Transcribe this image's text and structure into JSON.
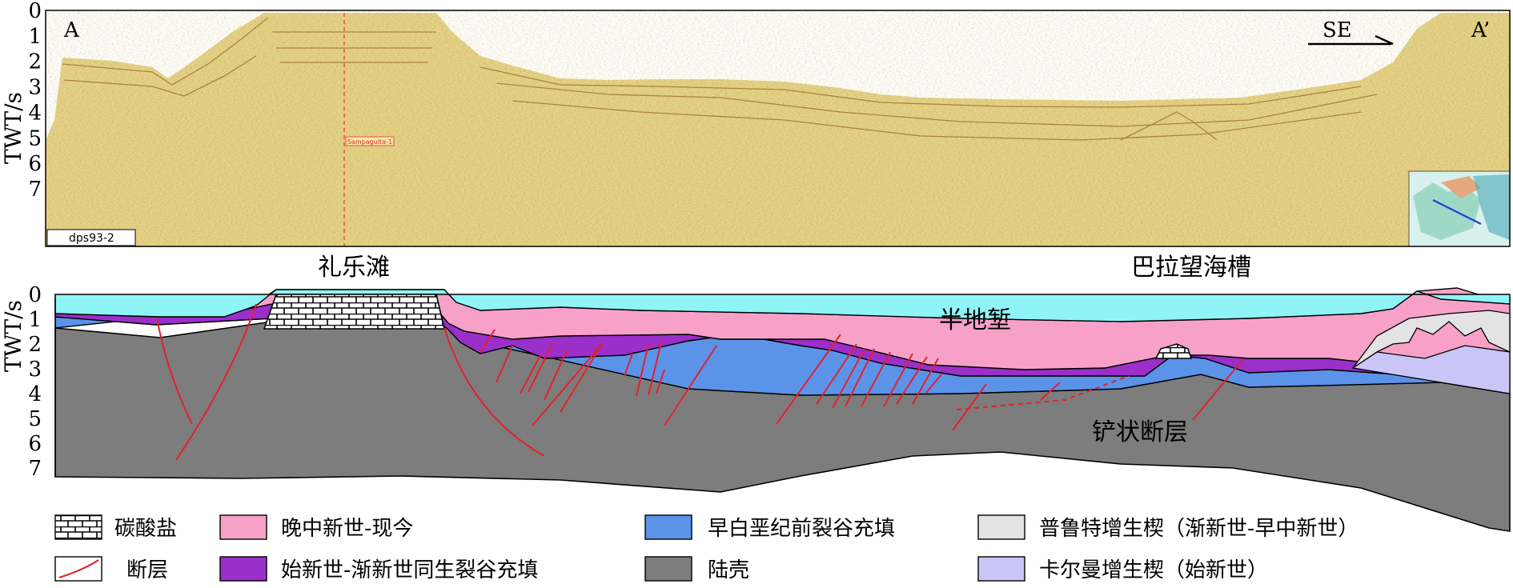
{
  "seismic": {
    "ylabel": "TWT/s",
    "ticks": [
      "0",
      "1",
      "2",
      "3",
      "4",
      "5",
      "6",
      "7"
    ],
    "corner_left": "A",
    "corner_right": "A’",
    "direction": "SE",
    "line_name": "dps93-2",
    "well_label": "Sampaguita-1"
  },
  "places": {
    "left": "礼乐滩",
    "right": "巴拉望海槽"
  },
  "interpretation": {
    "ylabel": "TWT/s",
    "ticks": [
      "0",
      "1",
      "2",
      "3",
      "4",
      "5",
      "6",
      "7"
    ],
    "label_halfgraben": "半地堑",
    "label_listric": "铲状断层"
  },
  "legend": [
    {
      "key": "carbonate",
      "label": "碳酸盐",
      "color": "#ffffff"
    },
    {
      "key": "fault",
      "label": "断层",
      "color": "#e3212b"
    },
    {
      "key": "late_miocene",
      "label": "晚中新世-现今",
      "color": "#f7a1c8"
    },
    {
      "key": "synrift",
      "label": "始新世-渐新世同生裂谷充填",
      "color": "#9b2fc9"
    },
    {
      "key": "prerift",
      "label": "早白垩纪前裂谷充填",
      "color": "#5b93e8"
    },
    {
      "key": "crust",
      "label": "陆壳",
      "color": "#7d7d7d"
    },
    {
      "key": "prut",
      "label": "普鲁特增生楔（渐新世-早中新世）",
      "color": "#e3e3e3"
    },
    {
      "key": "kalman",
      "label": "卡尔曼增生楔（始新世）",
      "color": "#c9c6f7"
    }
  ],
  "colors": {
    "water": "#8ef4f6",
    "late_miocene": "#f7a1c8",
    "synrift": "#9b2fc9",
    "prerift": "#5b93e8",
    "crust": "#7d7d7d",
    "prut": "#e3e3e3",
    "kalman": "#c9c6f7",
    "fault": "#e3212b",
    "seismic_bg": "#e6d48a"
  }
}
